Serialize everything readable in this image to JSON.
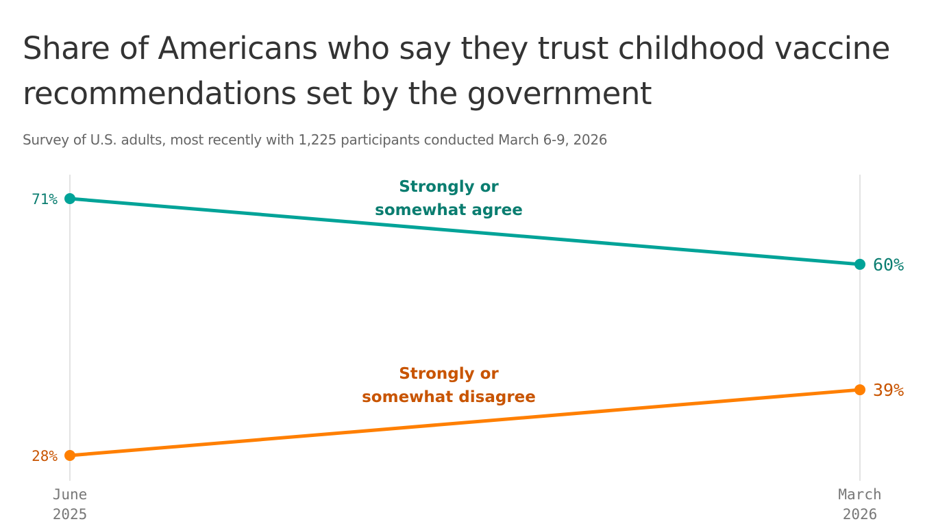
{
  "chart_data": {
    "type": "line",
    "title": "Share of Americans who say they trust childhood vaccine recommendations set by the government",
    "subtitle": "Survey of U.S. adults, most recently with 1,225 participants conducted March 6-9, 2026",
    "x": [
      [
        "June",
        "2025"
      ],
      [
        "March",
        "2026"
      ]
    ],
    "ylim": [
      28,
      71
    ],
    "grid": "vertical lines at each x",
    "series": [
      {
        "name": "Strongly or somewhat agree",
        "name_lines": [
          "Strongly or",
          "somewhat agree"
        ],
        "values": [
          71,
          60
        ],
        "labels": [
          "71%",
          "60%"
        ],
        "color": "#00a398",
        "label_color": "#0a7d70"
      },
      {
        "name": "Strongly or somewhat disagree",
        "name_lines": [
          "Strongly or",
          "somewhat disagree"
        ],
        "values": [
          28,
          39
        ],
        "labels": [
          "28%",
          "39%"
        ],
        "color": "#ff7f00",
        "label_color": "#c85400"
      }
    ]
  }
}
